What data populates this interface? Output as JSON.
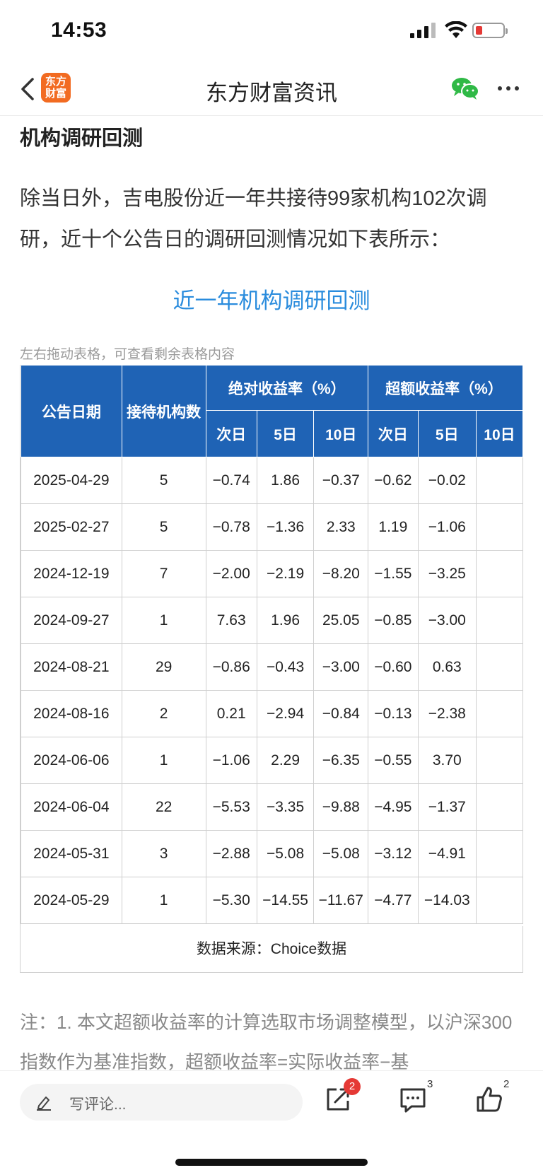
{
  "status_bar": {
    "time": "14:53"
  },
  "nav": {
    "title": "东方财富资讯",
    "logo_line1": "东方",
    "logo_line2": "财富"
  },
  "article": {
    "section_heading": "机构调研回测",
    "intro": "除当日外，吉电股份近一年共接待99家机构102次调研，近十个公告日的调研回测情况如下表所示：",
    "table_title": "近一年机构调研回测",
    "scroll_hint": "左右拖动表格，可查看剩余表格内容",
    "note": "注：1. 本文超额收益率的计算选取市场调整模型，以沪深300指数作为基准指数，超额收益率=实际收益率−基"
  },
  "table": {
    "headers": {
      "date": "公告日期",
      "orgs": "接待机构数",
      "abs_group": "绝对收益率（%）",
      "excess_group": "超额收益率（%）",
      "next_day": "次日",
      "five_day": "5日",
      "ten_day": "10日"
    },
    "rows": [
      [
        "2025-04-29",
        "5",
        "−0.74",
        "1.86",
        "−0.37",
        "−0.62",
        "−0.02"
      ],
      [
        "2025-02-27",
        "5",
        "−0.78",
        "−1.36",
        "2.33",
        "1.19",
        "−1.06"
      ],
      [
        "2024-12-19",
        "7",
        "−2.00",
        "−2.19",
        "−8.20",
        "−1.55",
        "−3.25"
      ],
      [
        "2024-09-27",
        "1",
        "7.63",
        "1.96",
        "25.05",
        "−0.85",
        "−3.00"
      ],
      [
        "2024-08-21",
        "29",
        "−0.86",
        "−0.43",
        "−3.00",
        "−0.60",
        "0.63"
      ],
      [
        "2024-08-16",
        "2",
        "0.21",
        "−2.94",
        "−0.84",
        "−0.13",
        "−2.38"
      ],
      [
        "2024-06-06",
        "1",
        "−1.06",
        "2.29",
        "−6.35",
        "−0.55",
        "3.70"
      ],
      [
        "2024-06-04",
        "22",
        "−5.53",
        "−3.35",
        "−9.88",
        "−4.95",
        "−1.37"
      ],
      [
        "2024-05-31",
        "3",
        "−2.88",
        "−5.08",
        "−5.08",
        "−3.12",
        "−4.91"
      ],
      [
        "2024-05-29",
        "1",
        "−5.30",
        "−14.55",
        "−11.67",
        "−4.77",
        "−14.03"
      ]
    ],
    "source": "数据来源：Choice数据"
  },
  "bottom_bar": {
    "comment_placeholder": "写评论...",
    "share_badge": "2",
    "comment_count": "3",
    "like_count": "2"
  }
}
